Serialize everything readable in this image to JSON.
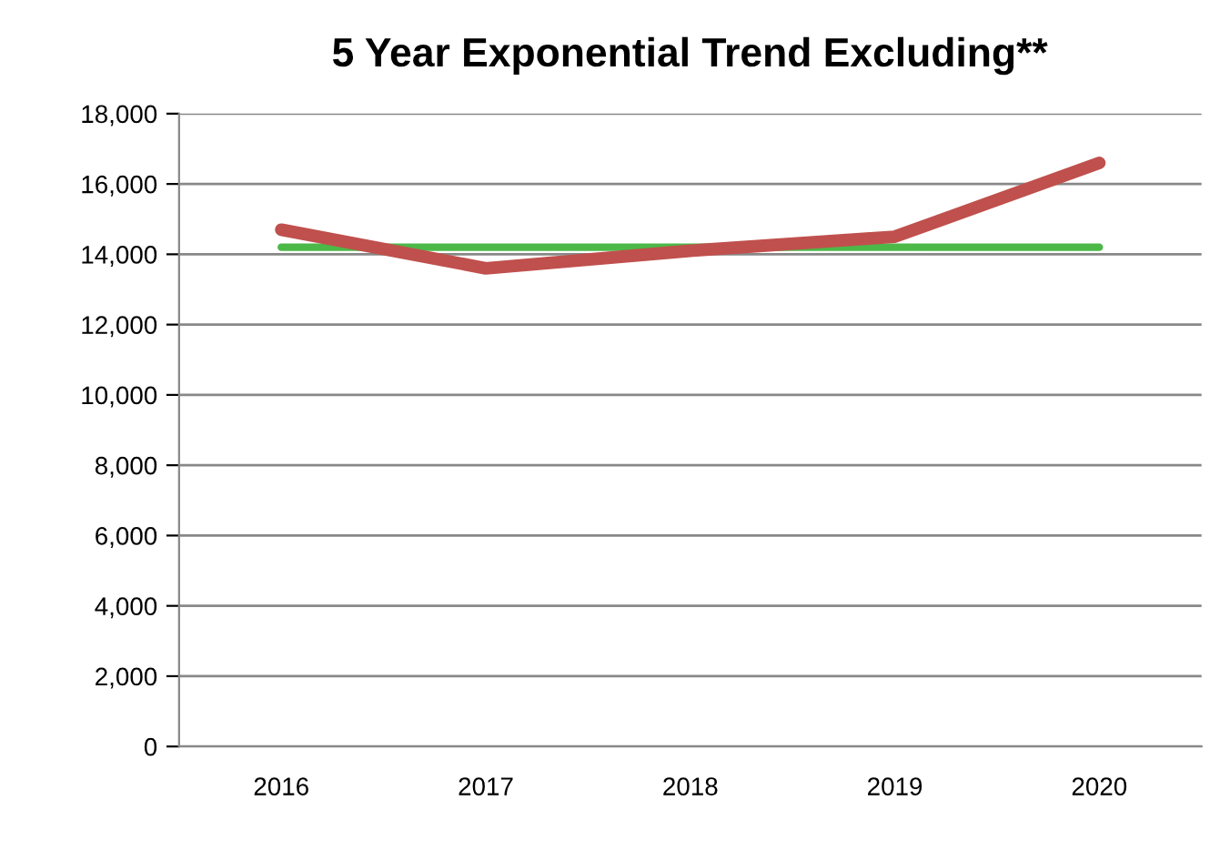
{
  "chart_data": {
    "type": "line",
    "title": "5 Year Exponential Trend Excluding**",
    "categories": [
      "2016",
      "2017",
      "2018",
      "2019",
      "2020"
    ],
    "series": [
      {
        "color": "#c0504d",
        "values": [
          14700,
          13600,
          14100,
          14500,
          16600
        ]
      },
      {
        "color": "#4cb848",
        "values": [
          14200,
          14200,
          14200,
          14200,
          14200
        ]
      }
    ],
    "ylim": [
      0,
      18000
    ],
    "yticks": [
      {
        "value": 0,
        "label": "0"
      },
      {
        "value": 2000,
        "label": "2,000"
      },
      {
        "value": 4000,
        "label": "4,000"
      },
      {
        "value": 6000,
        "label": "6,000"
      },
      {
        "value": 8000,
        "label": "8,000"
      },
      {
        "value": 10000,
        "label": "10,000"
      },
      {
        "value": 12000,
        "label": "12,000"
      },
      {
        "value": 14000,
        "label": "14,000"
      },
      {
        "value": 16000,
        "label": "16,000"
      },
      {
        "value": 18000,
        "label": "18,000"
      }
    ],
    "grid": "y",
    "legend": false,
    "marker": "none",
    "line_style": "solid"
  }
}
